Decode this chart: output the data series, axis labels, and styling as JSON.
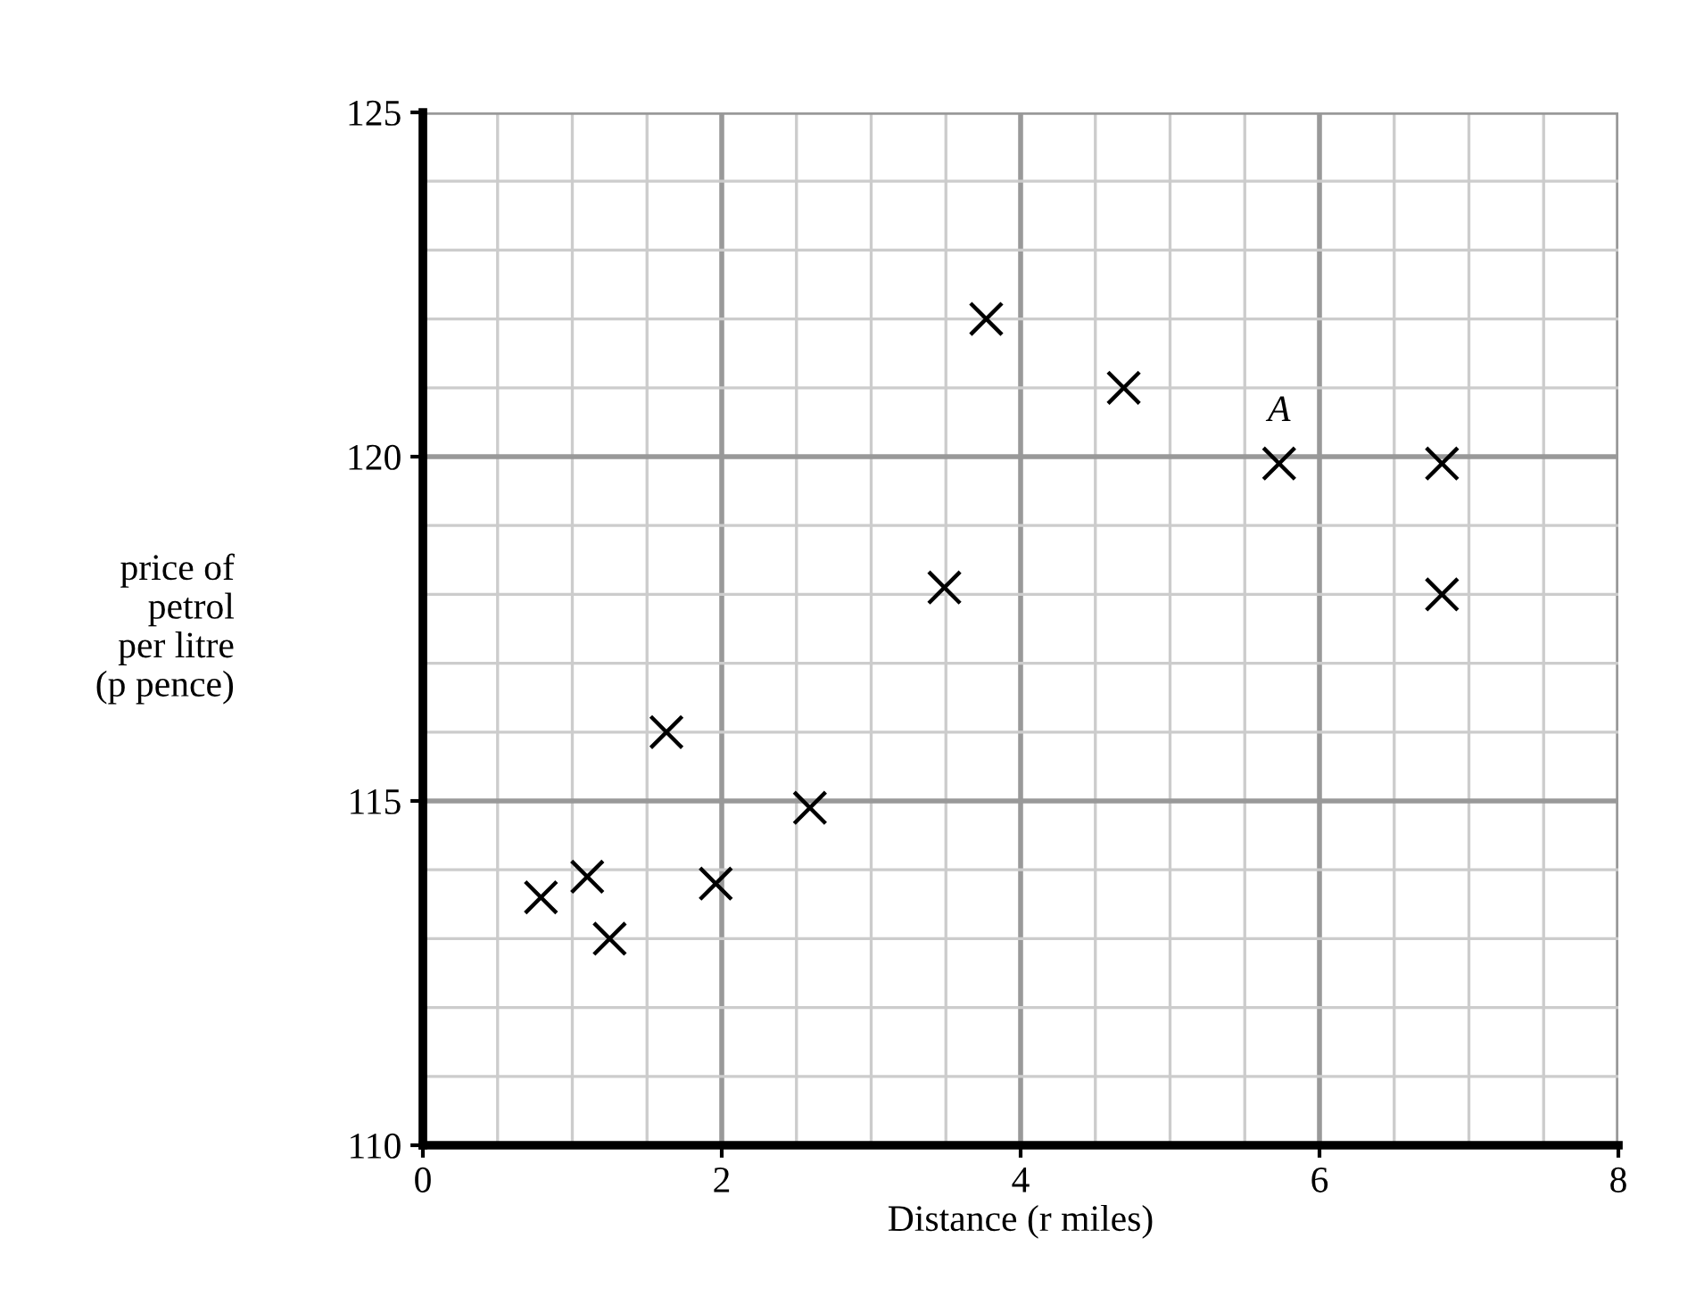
{
  "chart_data": {
    "type": "scatter",
    "xlabel": "Distance (r miles)",
    "ylabel": "price of\npetrol\nper litre\n(p pence)",
    "x": [
      0.79,
      1.1,
      1.25,
      1.63,
      1.96,
      2.59,
      3.49,
      3.77,
      4.69,
      5.73,
      6.82,
      6.82
    ],
    "series": [
      {
        "color": "#000000",
        "values": [
          113.6,
          113.9,
          113.0,
          116.0,
          113.8,
          114.9,
          118.1,
          122.0,
          121.0,
          119.9,
          119.9,
          118.0
        ]
      }
    ],
    "annotations": [
      {
        "text": "A",
        "x": 5.73,
        "y": 119.9
      }
    ],
    "xlim": [
      0,
      8
    ],
    "ylim": [
      110,
      125
    ],
    "xticks": [
      0,
      2,
      4,
      6,
      8
    ],
    "yticks": [
      110,
      115,
      120,
      125
    ],
    "grid": true,
    "marker": "cross"
  }
}
